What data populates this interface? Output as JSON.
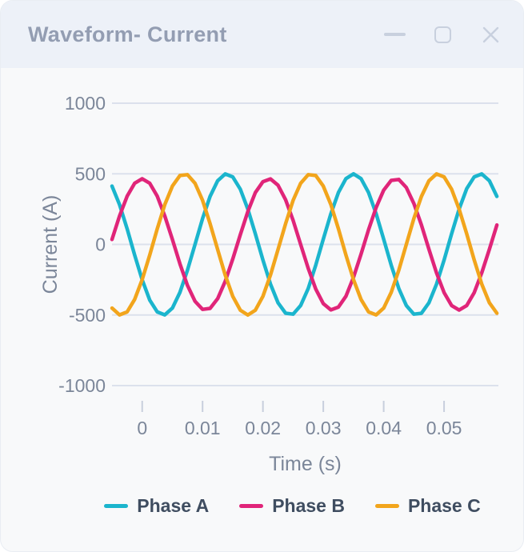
{
  "window": {
    "title": "Waveform- Current",
    "controls": [
      {
        "name": "minimize",
        "icon": "minimize-icon"
      },
      {
        "name": "maximize",
        "icon": "maximize-icon"
      },
      {
        "name": "close",
        "icon": "close-icon"
      }
    ]
  },
  "colors": {
    "titlebar_bg": "#edf1f8",
    "window_bg": "#f8f9fa",
    "title_text": "#939db2",
    "control_icon": "#c8d0de",
    "gridline": "#dce1ec",
    "tick_mark": "#c8cfdd",
    "axis_text": "#7b8699",
    "legend_text": "#3f4d60",
    "phase_a": "#1bb5cd",
    "phase_b": "#e02579",
    "phase_c": "#f2a51c"
  },
  "chart_data": {
    "type": "line",
    "title": "",
    "xlabel": "Time (s)",
    "ylabel": "Current (A)",
    "xlim": [
      -0.005,
      0.059
    ],
    "ylim": [
      -1000,
      1000
    ],
    "grid": "horizontal-only",
    "legend_position": "bottom",
    "y_gridlines": [
      1000,
      500,
      0,
      -500,
      -1000
    ],
    "y_tick_labels": [
      "1000",
      "500",
      "0",
      "-500",
      "-1000"
    ],
    "x_ticks": [
      0,
      0.01,
      0.02,
      0.03,
      0.04,
      0.05
    ],
    "x_tick_labels": [
      "0",
      "0.01",
      "0.02",
      "0.03",
      "0.04",
      "0.05"
    ],
    "t_ms": [
      -5,
      -3.75,
      -2.5,
      -1.25,
      0,
      1.25,
      2.5,
      3.75,
      5,
      6.25,
      7.5,
      8.75,
      10,
      11.25,
      12.5,
      13.75,
      15,
      16.25,
      17.5,
      18.75,
      20,
      21.25,
      22.5,
      23.75,
      25,
      26.25,
      27.5,
      28.75,
      30,
      31.25,
      32.5,
      33.75,
      35,
      36.25,
      37.5,
      38.75,
      40,
      41.25,
      42.5,
      43.75,
      45,
      46.25,
      47.5,
      48.75,
      50,
      51.25,
      52.5,
      53.75,
      55,
      56.25,
      57.5,
      58.75
    ],
    "series": [
      {
        "name": "Phase A",
        "color": "#1bb5cd",
        "values": [
          413,
          282,
          111,
          -75,
          -250,
          -395,
          -478,
          -499,
          -451,
          -340,
          -183,
          0,
          183,
          340,
          451,
          499,
          478,
          391,
          250,
          75,
          -111,
          -281,
          -413,
          -487,
          -494,
          -433,
          -312,
          -147,
          37,
          217,
          367,
          466,
          500,
          466,
          367,
          217,
          37,
          -147,
          -312,
          -433,
          -494,
          -488,
          -413,
          -282,
          -111,
          75,
          250,
          395,
          478,
          499,
          451,
          340
        ]
      },
      {
        "name": "Phase B",
        "color": "#e02579",
        "values": [
          35,
          201,
          341,
          433,
          465,
          433,
          341,
          201,
          35,
          -137,
          -290,
          -403,
          -460,
          -453,
          -384,
          -262,
          -104,
          69,
          233,
          367,
          444,
          464,
          419,
          316,
          170,
          0,
          -170,
          -316,
          -419,
          -464,
          -444,
          -367,
          -233,
          -69,
          104,
          262,
          384,
          453,
          460,
          403,
          290,
          137,
          -35,
          -201,
          -341,
          -433,
          -465,
          -433,
          -341,
          -201,
          -35,
          137
        ]
      },
      {
        "name": "Phase C",
        "color": "#f2a51c",
        "values": [
          -451,
          -499,
          -478,
          -390,
          -250,
          -75,
          111,
          282,
          413,
          488,
          494,
          433,
          312,
          147,
          -37,
          -217,
          -367,
          -466,
          -500,
          -466,
          -367,
          -217,
          -37,
          147,
          312,
          433,
          494,
          488,
          413,
          282,
          111,
          -75,
          -250,
          -390,
          -478,
          -499,
          -451,
          -340,
          -183,
          0,
          183,
          340,
          451,
          499,
          478,
          391,
          250,
          75,
          -111,
          -281,
          -413,
          -487
        ]
      }
    ]
  }
}
